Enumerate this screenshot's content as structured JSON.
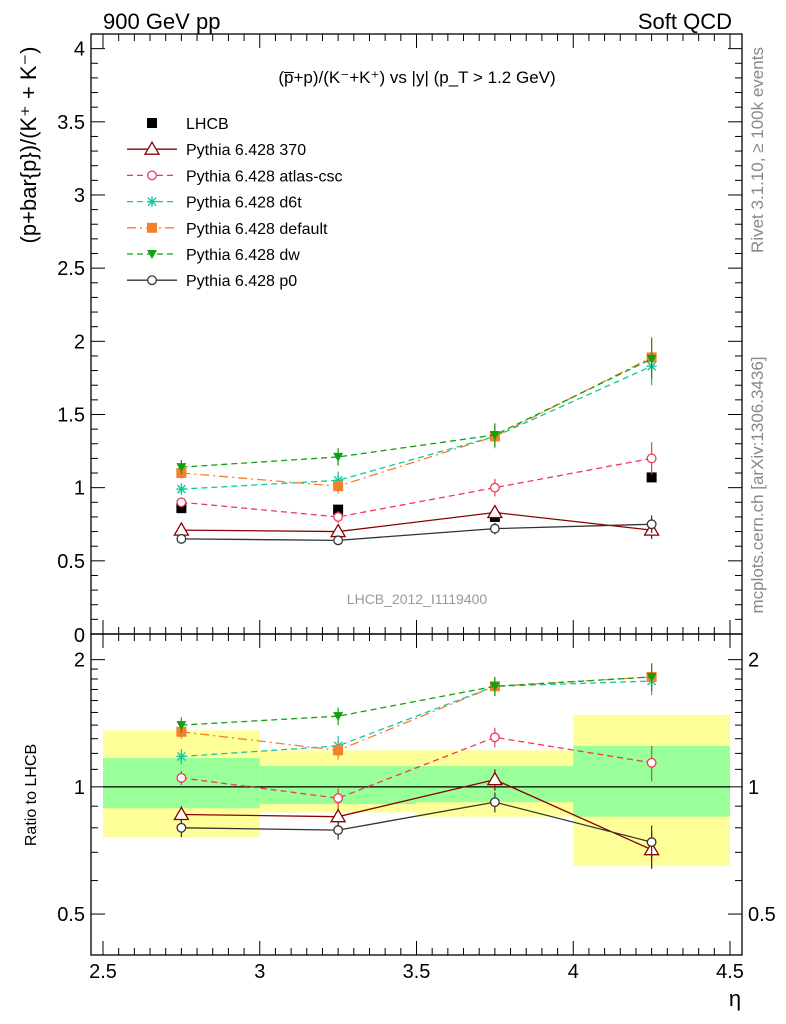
{
  "header": {
    "left": "900 GeV pp",
    "right": "Soft QCD"
  },
  "side_text": {
    "rivet": "Rivet 3.1.10, ≥ 100k events",
    "mcplots": "mcplots.cern.ch [arXiv:1306.3436]"
  },
  "watermark": "LHCB_2012_I1119400",
  "colors": {
    "LHCB": "#000000",
    "370": "#8b0000",
    "atlas_csc": "#ee3a5a",
    "d6t": "#10c8a0",
    "default": "#f47f2c",
    "dw": "#10a010",
    "p0": "#333333",
    "band_inner": "#99ff99",
    "band_outer": "#ffff99"
  },
  "chart_data": [
    {
      "type": "scatter",
      "title": "(p̅+p)/(K⁻+K⁺) vs |y| (p_T > 1.2 GeV)",
      "ylabel": "(p+bar{p})/(K⁺ + K⁻)",
      "xlim": [
        2.5,
        4.5
      ],
      "ylim": [
        0,
        4.1
      ],
      "yticks": [
        "0.5",
        "1",
        "1.5",
        "2",
        "2.5",
        "3",
        "3.5",
        "4"
      ],
      "x": [
        2.75,
        3.25,
        3.75,
        4.25
      ],
      "legend_position": "top-left",
      "series": [
        {
          "name": "LHCB",
          "key": "LHCB",
          "marker": "square-filled",
          "line": "none",
          "values": [
            0.86,
            0.85,
            0.8,
            1.07
          ],
          "errors": [
            0.02,
            0.02,
            0.02,
            0.03
          ]
        },
        {
          "name": "Pythia 6.428 370",
          "key": "370",
          "marker": "triangle-open",
          "line": "solid",
          "values": [
            0.71,
            0.7,
            0.83,
            0.71
          ],
          "errors": [
            0.03,
            0.03,
            0.04,
            0.06
          ]
        },
        {
          "name": "Pythia 6.428 atlas-csc",
          "key": "atlas_csc",
          "marker": "circle-open",
          "line": "dashed",
          "values": [
            0.9,
            0.8,
            1.0,
            1.2
          ],
          "errors": [
            0.03,
            0.04,
            0.06,
            0.11
          ]
        },
        {
          "name": "Pythia 6.428 d6t",
          "key": "d6t",
          "marker": "star",
          "line": "dashed",
          "values": [
            0.99,
            1.05,
            1.35,
            1.83
          ],
          "errors": [
            0.04,
            0.06,
            0.08,
            0.13
          ]
        },
        {
          "name": "Pythia 6.428 default",
          "key": "default",
          "marker": "square-filled",
          "line": "dashdot",
          "values": [
            1.1,
            1.01,
            1.35,
            1.89
          ],
          "errors": [
            0.04,
            0.05,
            0.08,
            0.14
          ]
        },
        {
          "name": "Pythia 6.428 dw",
          "key": "dw",
          "marker": "triangle-down-filled",
          "line": "dashed",
          "values": [
            1.14,
            1.21,
            1.36,
            1.88
          ],
          "errors": [
            0.05,
            0.06,
            0.08,
            0.14
          ]
        },
        {
          "name": "Pythia 6.428 p0",
          "key": "p0",
          "marker": "circle-open",
          "line": "solid",
          "values": [
            0.65,
            0.64,
            0.72,
            0.75
          ],
          "errors": [
            0.03,
            0.03,
            0.04,
            0.06
          ]
        }
      ]
    },
    {
      "type": "scatter",
      "ylabel": "Ratio to LHCB",
      "xlabel": "η",
      "xlim": [
        2.5,
        4.5
      ],
      "ylim": [
        0.4,
        2.3
      ],
      "yscale": "log",
      "yticks": [
        "0.5",
        "1",
        "2"
      ],
      "xticks": [
        "2.5",
        "3",
        "3.5",
        "4",
        "4.5"
      ],
      "x": [
        2.75,
        3.25,
        3.75,
        4.25
      ],
      "bands": [
        {
          "x": [
            2.5,
            3.0
          ],
          "inner": [
            0.89,
            1.17
          ],
          "outer": [
            0.76,
            1.36
          ]
        },
        {
          "x": [
            3.0,
            3.5
          ],
          "inner": [
            0.91,
            1.12
          ],
          "outer": [
            0.87,
            1.22
          ]
        },
        {
          "x": [
            3.5,
            4.0
          ],
          "inner": [
            0.92,
            1.12
          ],
          "outer": [
            0.85,
            1.22
          ]
        },
        {
          "x": [
            4.0,
            4.5
          ],
          "inner": [
            0.85,
            1.25
          ],
          "outer": [
            0.65,
            1.48
          ]
        }
      ],
      "series": [
        {
          "key": "370",
          "marker": "triangle-open",
          "line": "solid",
          "values": [
            0.86,
            0.85,
            1.04,
            0.71
          ],
          "errors": [
            0.04,
            0.04,
            0.06,
            0.07
          ]
        },
        {
          "key": "atlas_csc",
          "marker": "circle-open",
          "line": "dashed",
          "values": [
            1.05,
            0.94,
            1.31,
            1.14
          ],
          "errors": [
            0.04,
            0.05,
            0.07,
            0.11
          ]
        },
        {
          "key": "d6t",
          "marker": "star",
          "line": "dashed",
          "values": [
            1.18,
            1.25,
            1.73,
            1.78
          ],
          "errors": [
            0.05,
            0.07,
            0.09,
            0.13
          ]
        },
        {
          "key": "default",
          "marker": "square-filled",
          "line": "dashdot",
          "values": [
            1.35,
            1.22,
            1.73,
            1.82
          ],
          "errors": [
            0.05,
            0.06,
            0.09,
            0.14
          ]
        },
        {
          "key": "dw",
          "marker": "triangle-down-filled",
          "line": "dashed",
          "values": [
            1.4,
            1.47,
            1.73,
            1.82
          ],
          "errors": [
            0.06,
            0.07,
            0.09,
            0.14
          ]
        },
        {
          "key": "p0",
          "marker": "circle-open",
          "line": "solid",
          "values": [
            0.8,
            0.79,
            0.92,
            0.74
          ],
          "errors": [
            0.04,
            0.04,
            0.05,
            0.07
          ]
        }
      ]
    }
  ]
}
